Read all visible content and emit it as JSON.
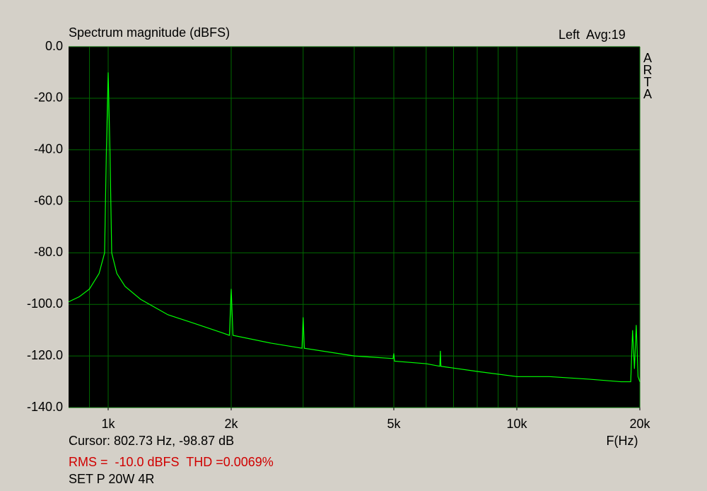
{
  "chart_data": {
    "type": "line",
    "title": "Spectrum magnitude (dBFS)",
    "annotations": [
      "Left  Avg:19",
      "ARTA",
      "Cursor: 802.73 Hz, -98.87 dB",
      "RMS =  -10.0 dBFS  THD =0.0069%",
      "SET P 20W 4R"
    ],
    "x_label": "F(Hz)",
    "xscale": "log",
    "xlim": [
      800,
      20000
    ],
    "ylim": [
      -140,
      0
    ],
    "xticks": [
      {
        "value": 1000,
        "label": "1k"
      },
      {
        "value": 2000,
        "label": "2k"
      },
      {
        "value": 5000,
        "label": "5k"
      },
      {
        "value": 10000,
        "label": "10k"
      },
      {
        "value": 20000,
        "label": "20k"
      }
    ],
    "xgrid": [
      900,
      1000,
      2000,
      3000,
      4000,
      5000,
      6000,
      7000,
      8000,
      9000,
      10000,
      20000
    ],
    "yticks": [
      {
        "value": 0,
        "label": "0.0"
      },
      {
        "value": -20,
        "label": "-20.0"
      },
      {
        "value": -40,
        "label": "-40.0"
      },
      {
        "value": -60,
        "label": "-60.0"
      },
      {
        "value": -80,
        "label": "-80.0"
      },
      {
        "value": -100,
        "label": "-100.0"
      },
      {
        "value": -120,
        "label": "-120.0"
      },
      {
        "value": -140,
        "label": "-140.0"
      }
    ],
    "grid": true,
    "series": [
      {
        "color": "#00ff00",
        "x": [
          800,
          850,
          900,
          950,
          980,
          990,
          1000,
          1010,
          1020,
          1050,
          1100,
          1200,
          1400,
          1600,
          1900,
          1980,
          2000,
          2020,
          2500,
          2980,
          3000,
          3020,
          4000,
          4980,
          5000,
          5020,
          6000,
          6480,
          6500,
          6520,
          8000,
          10000,
          12000,
          15000,
          18000,
          19000,
          19200,
          19400,
          19600,
          19800,
          20000
        ],
        "values": [
          -99,
          -97,
          -94,
          -88,
          -80,
          -40,
          -10,
          -40,
          -80,
          -88,
          -93,
          -98,
          -104,
          -107,
          -111,
          -112,
          -94,
          -112,
          -115,
          -117,
          -105,
          -117,
          -120,
          -121,
          -119,
          -122,
          -123,
          -124,
          -118,
          -124,
          -126,
          -128,
          -128,
          -129,
          -130,
          -130,
          -110,
          -125,
          -108,
          -128,
          -130
        ]
      }
    ]
  }
}
